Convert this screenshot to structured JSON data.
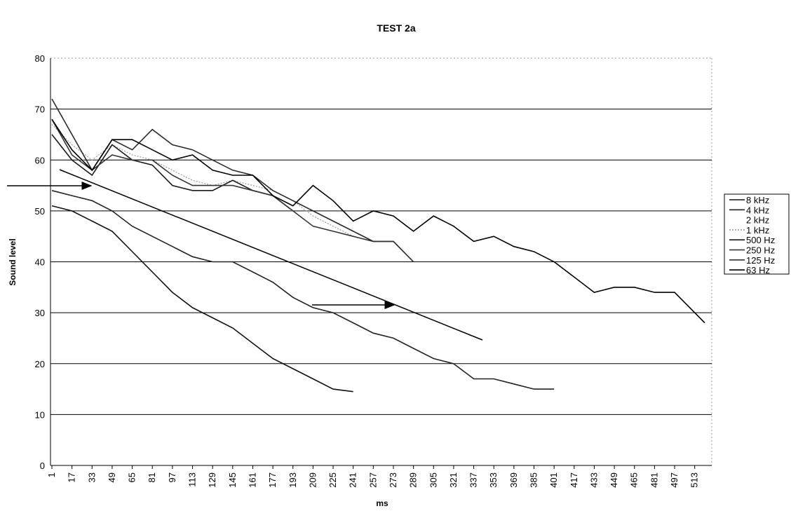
{
  "chart_data": {
    "type": "line",
    "title": "TEST 2a",
    "x_label": "ms",
    "y_label": "Sound level",
    "x": [
      1,
      17,
      33,
      49,
      65,
      81,
      97,
      113,
      129,
      145,
      161,
      177,
      193,
      209,
      225,
      241,
      257,
      273,
      289,
      305,
      321,
      337,
      353,
      369,
      385,
      401,
      417,
      433,
      449,
      465,
      481,
      497,
      513,
      521
    ],
    "xlim": [
      1,
      521
    ],
    "xticks": [
      1,
      17,
      33,
      49,
      65,
      81,
      97,
      113,
      129,
      145,
      161,
      177,
      193,
      209,
      225,
      241,
      257,
      273,
      289,
      305,
      321,
      337,
      353,
      369,
      385,
      401,
      417,
      433,
      449,
      465,
      481,
      497,
      513
    ],
    "ylim": [
      0,
      80
    ],
    "yticks": [
      0,
      10,
      20,
      30,
      40,
      50,
      60,
      70,
      80
    ],
    "grid": true,
    "legend": "right",
    "series": [
      {
        "name": "8 kHz",
        "color": "#111111",
        "values": [
          51,
          50,
          48,
          46,
          42,
          38,
          34,
          31,
          29,
          27,
          24,
          21,
          19,
          17,
          15,
          14.5,
          null,
          null,
          null,
          null,
          null,
          null,
          null,
          null,
          null,
          null,
          null,
          null,
          null,
          null,
          null,
          null,
          null,
          null
        ]
      },
      {
        "name": "4 kHz",
        "color": "#222222",
        "values": [
          54,
          53,
          52,
          50,
          47,
          45,
          43,
          41,
          40,
          40,
          38,
          36,
          33,
          31,
          30,
          28,
          26,
          25,
          23,
          21,
          20,
          17,
          17,
          16,
          15,
          15,
          null,
          null,
          null,
          null,
          null,
          null,
          null,
          null
        ]
      },
      {
        "name": "2 kHz",
        "color": "#ffffff",
        "values": [
          66,
          61,
          59,
          62,
          61,
          59,
          56,
          55,
          54,
          55,
          54,
          52,
          50,
          null,
          null,
          null,
          null,
          null,
          null,
          null,
          null,
          null,
          null,
          null,
          null,
          null,
          null,
          null,
          null,
          null,
          null,
          null,
          null,
          null
        ]
      },
      {
        "name": "1 kHz",
        "color": "#9a9a9a",
        "line_style": "dotted",
        "values": [
          67,
          63,
          60,
          63,
          61,
          60,
          58,
          56,
          55,
          56,
          55,
          54,
          52,
          49,
          47,
          45,
          null,
          null,
          null,
          null,
          null,
          null,
          null,
          null,
          null,
          null,
          null,
          null,
          null,
          null,
          null,
          null,
          null,
          null
        ]
      },
      {
        "name": "500 Hz",
        "color": "#1a1a1a",
        "values": [
          65,
          60,
          57,
          63,
          60,
          59,
          55,
          54,
          54,
          56,
          54,
          53,
          50,
          null,
          null,
          null,
          null,
          null,
          null,
          null,
          null,
          null,
          null,
          null,
          null,
          null,
          null,
          null,
          null,
          null,
          null,
          null,
          null,
          null
        ]
      },
      {
        "name": "250 Hz",
        "color": "#2a2a2a",
        "values": [
          72,
          65,
          58,
          64,
          62,
          66,
          63,
          62,
          60,
          58,
          57,
          54,
          52,
          50,
          48,
          46,
          44,
          44,
          40,
          null,
          null,
          null,
          null,
          null,
          null,
          null,
          null,
          null,
          null,
          null,
          null,
          null,
          null,
          null
        ]
      },
      {
        "name": "125 Hz",
        "color": "#333333",
        "values": [
          68,
          61,
          58,
          61,
          60,
          60,
          57,
          55,
          55,
          55,
          54,
          53,
          50,
          47,
          46,
          45,
          44,
          44,
          40,
          null,
          null,
          null,
          null,
          null,
          null,
          null,
          null,
          null,
          null,
          null,
          null,
          null,
          null,
          null
        ]
      },
      {
        "name": "63 Hz",
        "color": "#000000",
        "values": [
          68,
          62,
          58,
          64,
          64,
          62,
          60,
          61,
          58,
          57,
          57,
          53,
          51,
          55,
          52,
          48,
          50,
          49,
          46,
          49,
          47,
          44,
          45,
          43,
          42,
          40,
          37,
          34,
          35,
          35,
          34,
          34,
          30,
          28
        ]
      }
    ]
  }
}
